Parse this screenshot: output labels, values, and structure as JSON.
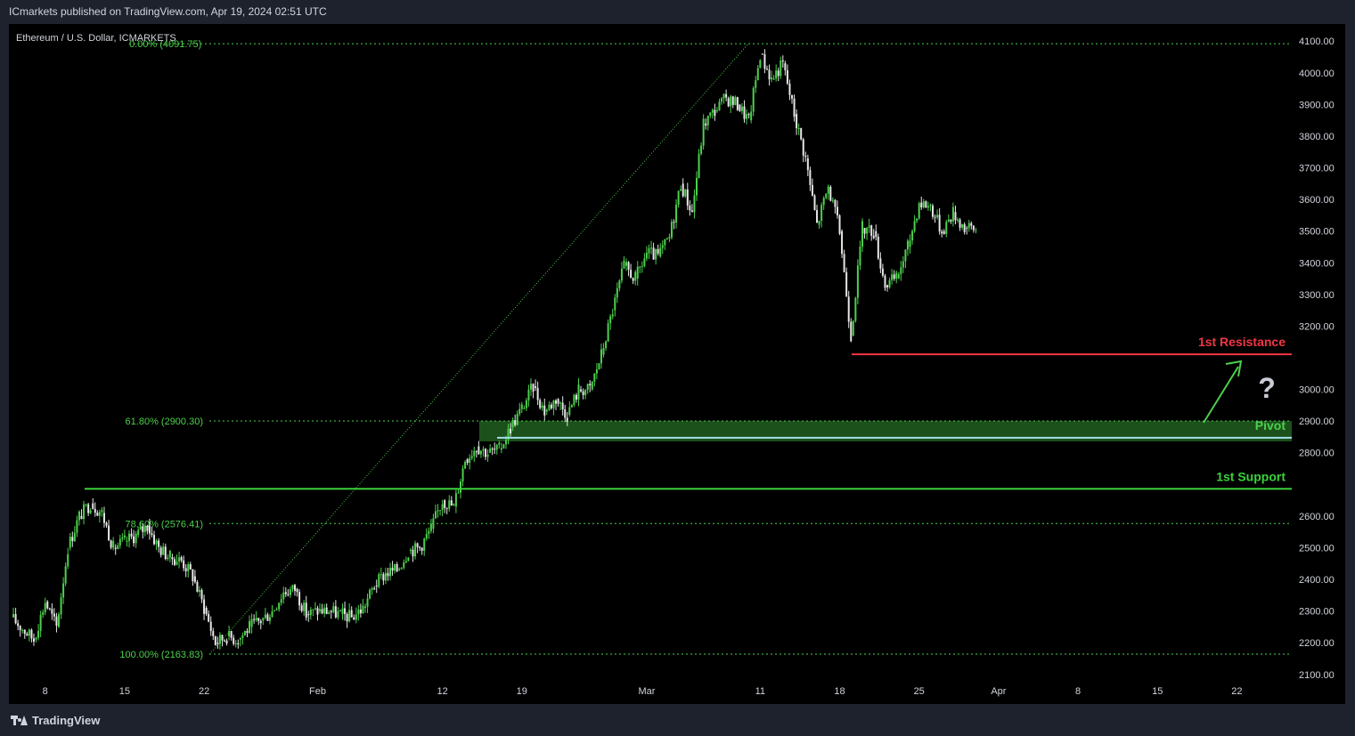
{
  "header": {
    "publisher": "ICmarkets published on TradingView.com, Apr 19, 2024 02:51 UTC"
  },
  "footer": {
    "brand": "TradingView"
  },
  "symbol": {
    "title": "Ethereum / U.S. Dollar",
    "overlapped_label": "0.00% (4091.75)",
    "suffix": "ICMARKETS"
  },
  "colors": {
    "background": "#000000",
    "frame": "#1e222d",
    "up": "#4cd04c",
    "down": "#e6e6e6",
    "fib": "#4cd04c",
    "resistance": "#f23645",
    "pivot": "#a4e0e8",
    "support": "#3ad13a",
    "zone": "#1f5a1f",
    "arrow": "#4cd04c"
  },
  "icons": {
    "question": "question-mark-icon",
    "arrow": "up-right-arrow-icon"
  },
  "chart_data": {
    "type": "candlestick",
    "title": "Ethereum / U.S. Dollar",
    "ylim": [
      2060,
      4140
    ],
    "xlim": [
      "2024-01-05",
      "2024-03-30"
    ],
    "x_ticks": [
      "8",
      "15",
      "22",
      "Feb",
      "12",
      "19",
      "Mar",
      "11",
      "18",
      "25",
      "Apr",
      "8",
      "15",
      "22"
    ],
    "x_tick_dates": [
      "2024-01-08",
      "2024-01-15",
      "2024-01-22",
      "2024-02-01",
      "2024-02-12",
      "2024-02-19",
      "2024-03-01",
      "2024-03-11",
      "2024-03-18",
      "2024-03-25",
      "2024-04-01",
      "2024-04-08",
      "2024-04-15",
      "2024-04-22"
    ],
    "y_ticks": [
      2100,
      2200,
      2300,
      2400,
      2500,
      2600,
      2800,
      2900,
      3000,
      3200,
      3300,
      3400,
      3500,
      3600,
      3700,
      3800,
      3900,
      4000,
      4100
    ],
    "y_tick_labels": [
      "2100.00",
      "2200.00",
      "2300.00",
      "2400.00",
      "2500.00",
      "2600.00",
      "2800.00",
      "2900.00",
      "3000.00",
      "3200.00",
      "3300.00",
      "3400.00",
      "3500.00",
      "3600.00",
      "3700.00",
      "3800.00",
      "3900.00",
      "4000.00",
      "4100.00"
    ],
    "price_path": [
      [
        "2024-01-05",
        2280
      ],
      [
        "2024-01-07",
        2210
      ],
      [
        "2024-01-08",
        2330
      ],
      [
        "2024-01-09",
        2250
      ],
      [
        "2024-01-10",
        2500
      ],
      [
        "2024-01-11",
        2600
      ],
      [
        "2024-01-12",
        2640
      ],
      [
        "2024-01-13",
        2610
      ],
      [
        "2024-01-14",
        2500
      ],
      [
        "2024-01-15",
        2520
      ],
      [
        "2024-01-16",
        2540
      ],
      [
        "2024-01-17",
        2570
      ],
      [
        "2024-01-18",
        2500
      ],
      [
        "2024-01-19",
        2470
      ],
      [
        "2024-01-20",
        2460
      ],
      [
        "2024-01-21",
        2410
      ],
      [
        "2024-01-22",
        2310
      ],
      [
        "2024-01-23",
        2200
      ],
      [
        "2024-01-24",
        2220
      ],
      [
        "2024-01-25",
        2210
      ],
      [
        "2024-01-26",
        2250
      ],
      [
        "2024-01-27",
        2270
      ],
      [
        "2024-01-28",
        2300
      ],
      [
        "2024-01-29",
        2360
      ],
      [
        "2024-01-30",
        2370
      ],
      [
        "2024-01-31",
        2290
      ],
      [
        "2024-02-01",
        2300
      ],
      [
        "2024-02-02",
        2300
      ],
      [
        "2024-02-03",
        2290
      ],
      [
        "2024-02-04",
        2280
      ],
      [
        "2024-02-05",
        2310
      ],
      [
        "2024-02-06",
        2380
      ],
      [
        "2024-02-07",
        2420
      ],
      [
        "2024-02-08",
        2430
      ],
      [
        "2024-02-09",
        2490
      ],
      [
        "2024-02-10",
        2500
      ],
      [
        "2024-02-11",
        2560
      ],
      [
        "2024-02-12",
        2650
      ],
      [
        "2024-02-13",
        2630
      ],
      [
        "2024-02-14",
        2780
      ],
      [
        "2024-02-15",
        2820
      ],
      [
        "2024-02-16",
        2800
      ],
      [
        "2024-02-17",
        2810
      ],
      [
        "2024-02-18",
        2880
      ],
      [
        "2024-02-19",
        2940
      ],
      [
        "2024-02-20",
        3010
      ],
      [
        "2024-02-21",
        2930
      ],
      [
        "2024-02-22",
        2970
      ],
      [
        "2024-02-23",
        2920
      ],
      [
        "2024-02-24",
        3000
      ],
      [
        "2024-02-25",
        3000
      ],
      [
        "2024-02-26",
        3110
      ],
      [
        "2024-02-27",
        3250
      ],
      [
        "2024-02-28",
        3390
      ],
      [
        "2024-02-29",
        3350
      ],
      [
        "2024-03-01",
        3430
      ],
      [
        "2024-03-02",
        3420
      ],
      [
        "2024-03-03",
        3480
      ],
      [
        "2024-03-04",
        3650
      ],
      [
        "2024-03-05",
        3560
      ],
      [
        "2024-03-06",
        3840
      ],
      [
        "2024-03-07",
        3880
      ],
      [
        "2024-03-08",
        3920
      ],
      [
        "2024-03-09",
        3900
      ],
      [
        "2024-03-10",
        3850
      ],
      [
        "2024-03-11",
        4060
      ],
      [
        "2024-03-12",
        3980
      ],
      [
        "2024-03-13",
        4030
      ],
      [
        "2024-03-14",
        3870
      ],
      [
        "2024-03-15",
        3730
      ],
      [
        "2024-03-16",
        3520
      ],
      [
        "2024-03-17",
        3640
      ],
      [
        "2024-03-18",
        3500
      ],
      [
        "2024-03-19",
        3170
      ],
      [
        "2024-03-20",
        3510
      ],
      [
        "2024-03-21",
        3500
      ],
      [
        "2024-03-22",
        3330
      ],
      [
        "2024-03-23",
        3350
      ],
      [
        "2024-03-24",
        3450
      ],
      [
        "2024-03-25",
        3590
      ],
      [
        "2024-03-26",
        3580
      ],
      [
        "2024-03-27",
        3500
      ],
      [
        "2024-03-28",
        3560
      ],
      [
        "2024-03-29",
        3510
      ],
      [
        "2024-03-30",
        3505
      ]
    ],
    "annotations": {
      "fib_levels": [
        {
          "label": "0.00% (4091.75)",
          "value": 4091.75
        },
        {
          "label": "61.80% (2900.30)",
          "value": 2900.3
        },
        {
          "label": "78.60% (2576.41)",
          "value": 2576.41
        },
        {
          "label": "100.00% (2163.83)",
          "value": 2163.83
        }
      ],
      "resistance": {
        "label": "1st Resistance",
        "value": 3111.04,
        "price_label": "3111.04"
      },
      "pivot": {
        "label": "Pivot",
        "value": 2847.25,
        "price_label": "2847.25"
      },
      "support": {
        "label": "1st Support",
        "value": 2685.96,
        "price_label": "2685.96"
      },
      "pivot_zone": [
        2847.25,
        2900.3
      ],
      "question_mark": "?"
    }
  }
}
